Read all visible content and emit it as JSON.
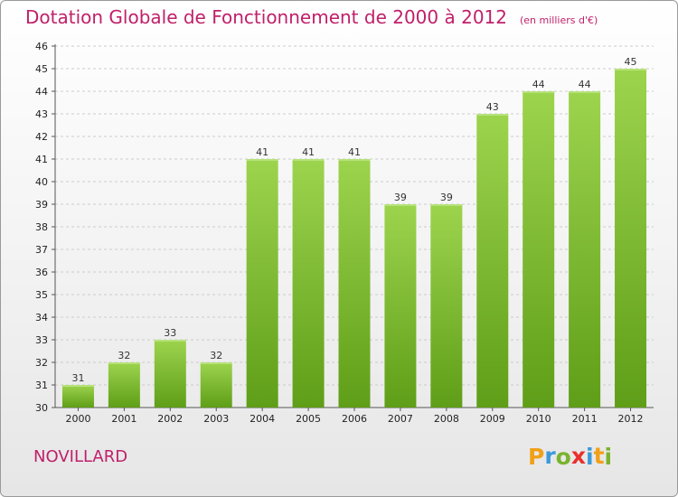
{
  "header": {
    "title": "Dotation Globale de Fonctionnement de 2000 à 2012",
    "subtitle": "(en milliers d'€)"
  },
  "footer": {
    "commune": "NOVILLARD",
    "logo_letters": [
      "P",
      "r",
      "o",
      "x",
      "i",
      "t",
      "i"
    ],
    "logo_colors": [
      "#f0a019",
      "#3a9ad9",
      "#7ab32e",
      "#e8312c",
      "#3a9ad9",
      "#f0a019",
      "#7ab32e"
    ]
  },
  "colors": {
    "bar_top": "#9dd44e",
    "bar_bottom": "#5f9e18",
    "text_accent": "#c0206a",
    "grid": "#cccccc"
  },
  "chart_data": {
    "type": "bar",
    "title": "Dotation Globale de Fonctionnement de 2000 à 2012",
    "subtitle": "(en milliers d'€)",
    "categories": [
      "2000",
      "2001",
      "2002",
      "2003",
      "2004",
      "2005",
      "2006",
      "2007",
      "2008",
      "2009",
      "2010",
      "2011",
      "2012"
    ],
    "values": [
      31,
      32,
      33,
      32,
      41,
      41,
      41,
      39,
      39,
      43,
      44,
      44,
      45
    ],
    "ylim": [
      30,
      46
    ],
    "yticks": [
      30,
      31,
      32,
      33,
      34,
      35,
      36,
      37,
      38,
      39,
      40,
      41,
      42,
      43,
      44,
      45,
      46
    ],
    "grid": true,
    "grid_style": "dashed-horizontal",
    "data_labels": true,
    "legend": "none"
  }
}
